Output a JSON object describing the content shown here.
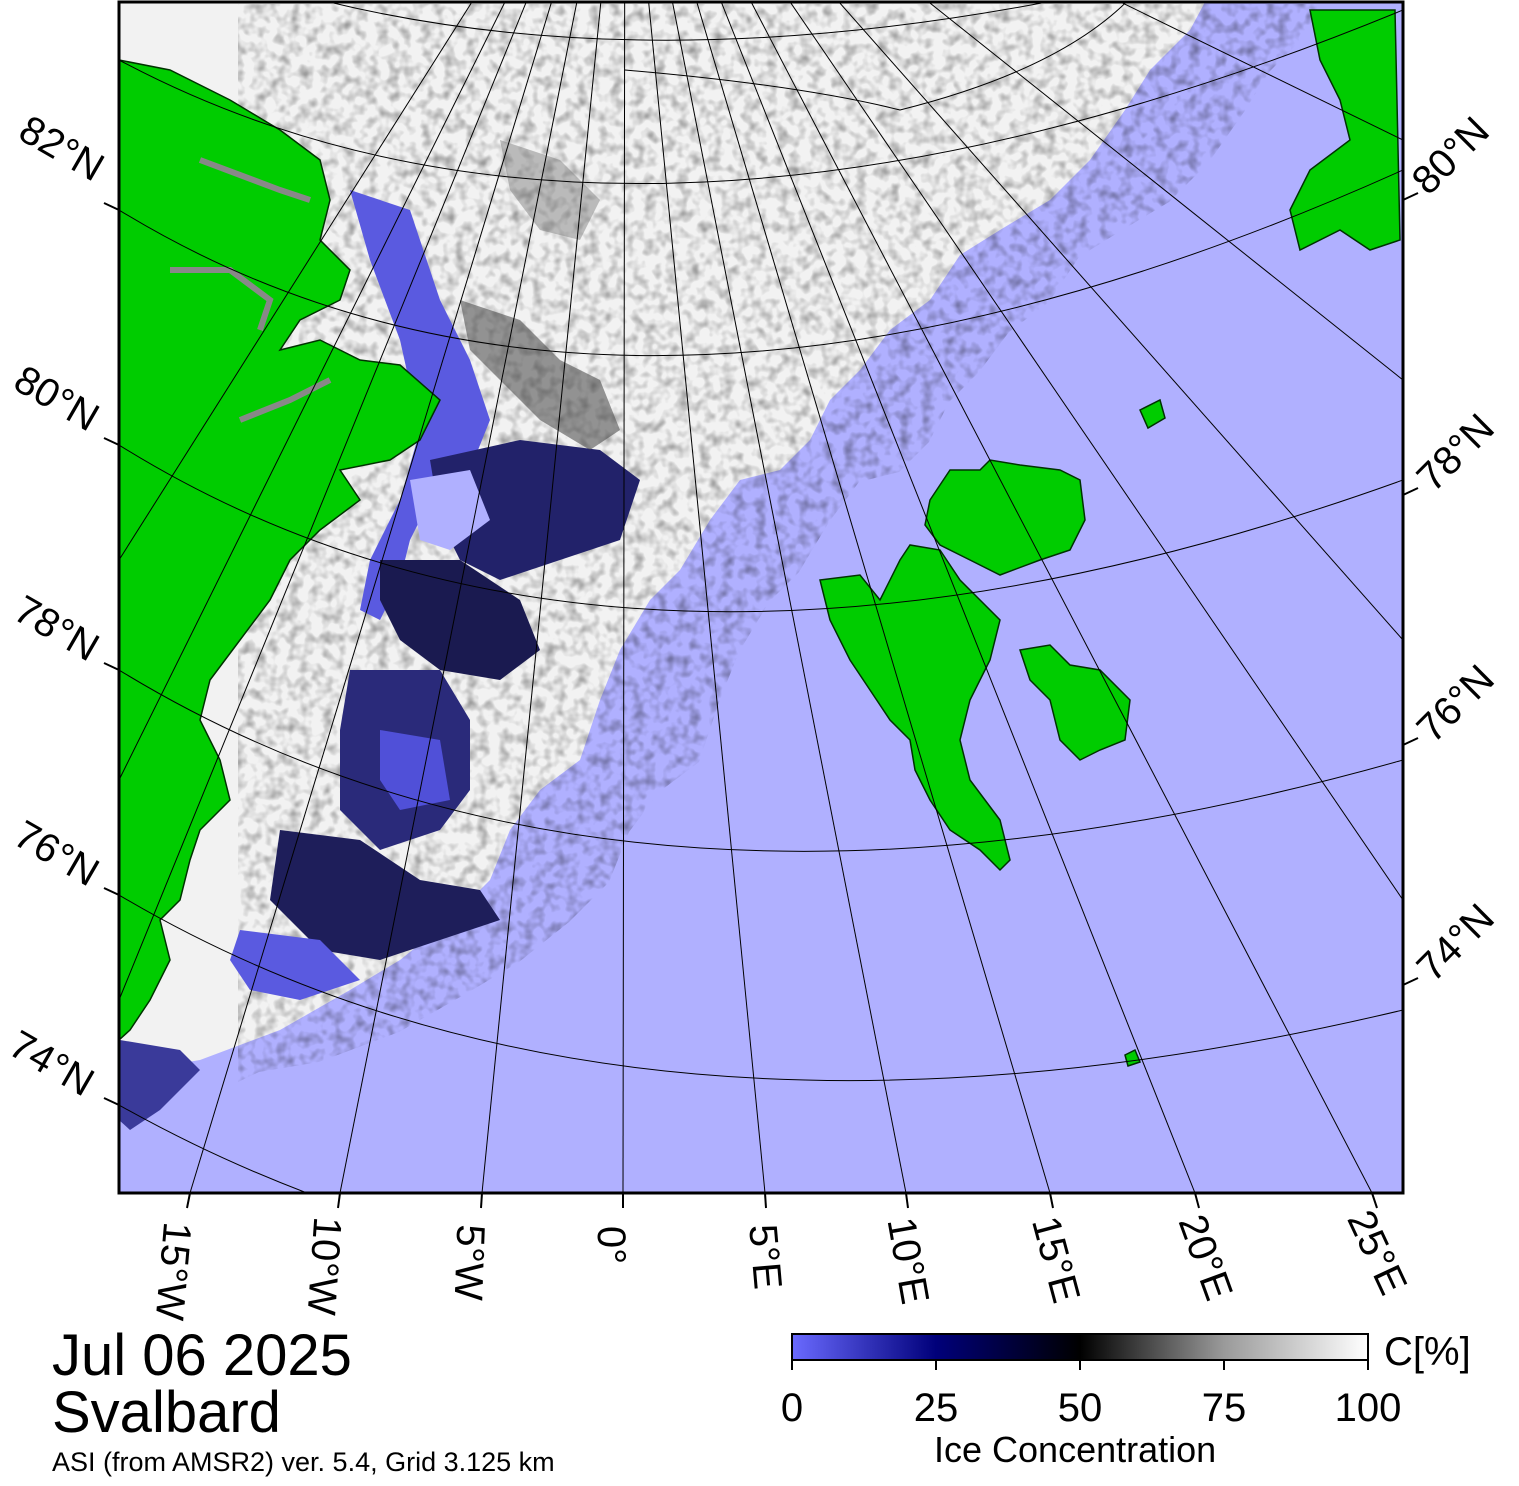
{
  "colors": {
    "open_water": "#b0b0ff",
    "land": "#00cc00",
    "coast": "#003300",
    "land_ice": "#888888",
    "full_ice": "#ffffff",
    "low_ice": "#4848dc",
    "mid_ice": "#000000"
  },
  "map": {
    "lat_labels_left": [
      "82°N",
      "80°N",
      "78°N",
      "76°N",
      "74°N"
    ],
    "lat_labels_right": [
      "80°N",
      "78°N",
      "76°N",
      "74°N"
    ],
    "lon_labels": [
      "15°W",
      "10°W",
      "5°W",
      "0°",
      "5°E",
      "10°E",
      "15°E",
      "20°E",
      "25°E"
    ]
  },
  "caption": {
    "date": "Jul 06 2025",
    "region": "Svalbard",
    "source": "ASI (from AMSR2) ver. 5.4,  Grid 3.125 km"
  },
  "colorbar": {
    "title": "Ice Concentration",
    "unit": "C[%]",
    "ticks": [
      "0",
      "25",
      "50",
      "75",
      "100"
    ],
    "stops": [
      "#6a6aff",
      "#00007a",
      "#000000",
      "#9a9a9a",
      "#ffffff"
    ]
  }
}
